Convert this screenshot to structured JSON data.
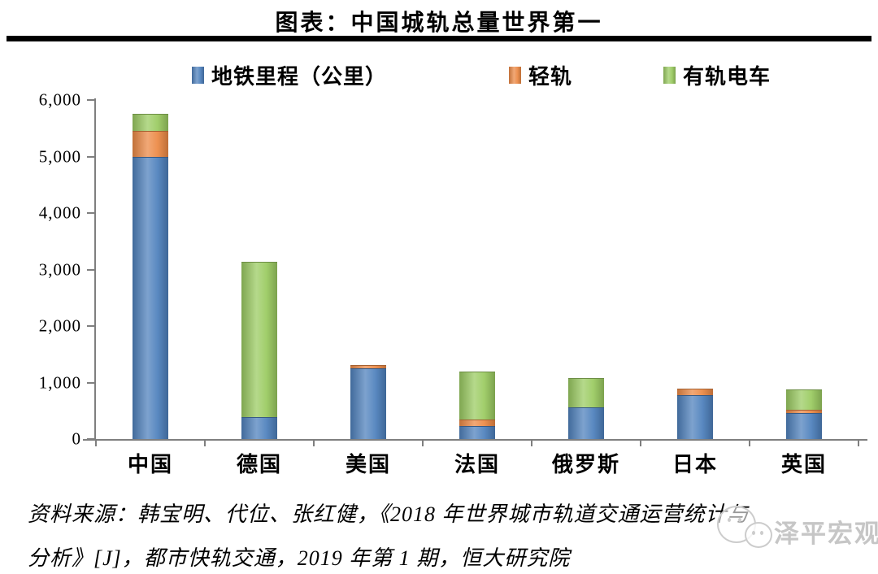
{
  "title": "图表：中国城轨总量世界第一",
  "legend": [
    {
      "label": "地铁里程（公里）",
      "color": "#4f81bd"
    },
    {
      "label": "轻轨",
      "color": "#ec8a46"
    },
    {
      "label": "有轨电车",
      "color": "#9bcb62"
    }
  ],
  "chart_data": {
    "type": "bar",
    "stacked": true,
    "title": "图表：中国城轨总量世界第一",
    "categories": [
      "中国",
      "德国",
      "美国",
      "法国",
      "俄罗斯",
      "日本",
      "英国"
    ],
    "series": [
      {
        "name": "地铁里程（公里）",
        "color": "#4f81bd",
        "values": [
          5000,
          390,
          1250,
          230,
          560,
          780,
          460
        ]
      },
      {
        "name": "轻轨",
        "color": "#ec8a46",
        "values": [
          450,
          0,
          60,
          110,
          0,
          110,
          60
        ]
      },
      {
        "name": "有轨电车",
        "color": "#9bcb62",
        "values": [
          310,
          2750,
          0,
          850,
          520,
          0,
          360
        ]
      }
    ],
    "totals": [
      5760,
      3140,
      1310,
      1190,
      1080,
      890,
      880
    ],
    "xlabel": "",
    "ylabel": "",
    "ylim": [
      0,
      6000
    ],
    "ytick_interval": 1000,
    "ytick_labels": [
      "0",
      "1,000",
      "2,000",
      "3,000",
      "4,000",
      "5,000",
      "6,000"
    ],
    "grid": false,
    "legend_position": "top",
    "axis_color": "#7f7f7f"
  },
  "source": {
    "line1": "资料来源：韩宝明、代位、张红健，《2018 年世界城市轨道交通运营统计与",
    "line2": "分析》[J]，都市快轨交通，2019 年第 1 期，恒大研究院"
  },
  "watermark": {
    "text": "泽平宏观"
  }
}
